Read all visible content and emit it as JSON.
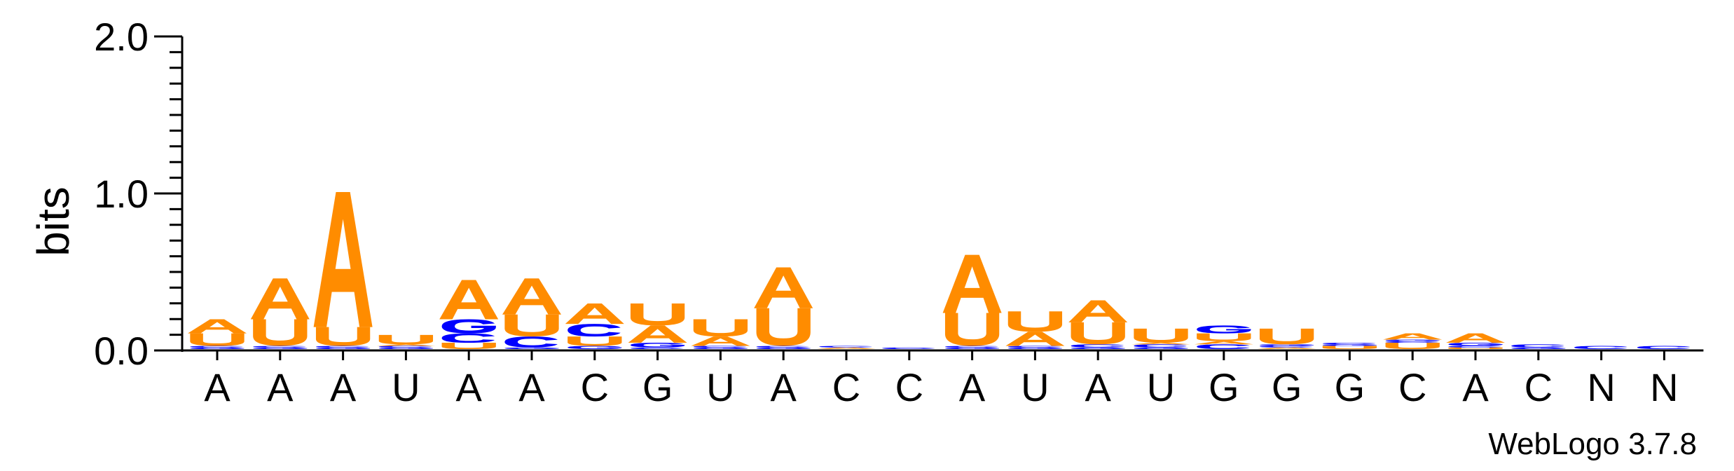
{
  "chart_data": {
    "type": "sequence-logo",
    "ylabel": "bits",
    "ylim": [
      0,
      2.0
    ],
    "yticks": [
      "0.0",
      "1.0",
      "2.0"
    ],
    "credit": "WebLogo 3.7.8",
    "colors": {
      "A": "#ff8c00",
      "U": "#ff8c00",
      "G": "#0000ff",
      "C": "#0000ff"
    },
    "positions": [
      {
        "label": "A",
        "stack": [
          {
            "letter": "G",
            "bits": 0.01
          },
          {
            "letter": "C",
            "bits": 0.01
          },
          {
            "letter": "U",
            "bits": 0.08
          },
          {
            "letter": "A",
            "bits": 0.09
          }
        ]
      },
      {
        "label": "A",
        "stack": [
          {
            "letter": "G",
            "bits": 0.01
          },
          {
            "letter": "C",
            "bits": 0.01
          },
          {
            "letter": "U",
            "bits": 0.17
          },
          {
            "letter": "A",
            "bits": 0.26
          }
        ]
      },
      {
        "label": "A",
        "stack": [
          {
            "letter": "G",
            "bits": 0.01
          },
          {
            "letter": "C",
            "bits": 0.01
          },
          {
            "letter": "U",
            "bits": 0.12
          },
          {
            "letter": "A",
            "bits": 0.86
          }
        ]
      },
      {
        "label": "U",
        "stack": [
          {
            "letter": "G",
            "bits": 0.01
          },
          {
            "letter": "C",
            "bits": 0.01
          },
          {
            "letter": "A",
            "bits": 0.01
          },
          {
            "letter": "U",
            "bits": 0.06
          }
        ]
      },
      {
        "label": "A",
        "stack": [
          {
            "letter": "U",
            "bits": 0.04
          },
          {
            "letter": "C",
            "bits": 0.06
          },
          {
            "letter": "G",
            "bits": 0.09
          },
          {
            "letter": "A",
            "bits": 0.25
          }
        ]
      },
      {
        "label": "A",
        "stack": [
          {
            "letter": "G",
            "bits": 0.01
          },
          {
            "letter": "C",
            "bits": 0.07
          },
          {
            "letter": "U",
            "bits": 0.14
          },
          {
            "letter": "A",
            "bits": 0.23
          }
        ]
      },
      {
        "label": "C",
        "stack": [
          {
            "letter": "G",
            "bits": 0.02
          },
          {
            "letter": "U",
            "bits": 0.06
          },
          {
            "letter": "C",
            "bits": 0.08
          },
          {
            "letter": "A",
            "bits": 0.13
          }
        ]
      },
      {
        "label": "G",
        "stack": [
          {
            "letter": "C",
            "bits": 0.01
          },
          {
            "letter": "G",
            "bits": 0.03
          },
          {
            "letter": "A",
            "bits": 0.11
          },
          {
            "letter": "U",
            "bits": 0.14
          }
        ]
      },
      {
        "label": "U",
        "stack": [
          {
            "letter": "G",
            "bits": 0.01
          },
          {
            "letter": "C",
            "bits": 0.01
          },
          {
            "letter": "A",
            "bits": 0.06
          },
          {
            "letter": "U",
            "bits": 0.11
          }
        ]
      },
      {
        "label": "A",
        "stack": [
          {
            "letter": "G",
            "bits": 0.01
          },
          {
            "letter": "C",
            "bits": 0.01
          },
          {
            "letter": "U",
            "bits": 0.24
          },
          {
            "letter": "A",
            "bits": 0.26
          }
        ]
      },
      {
        "label": "C",
        "stack": [
          {
            "letter": "A",
            "bits": 0.01
          },
          {
            "letter": "C",
            "bits": 0.01
          }
        ]
      },
      {
        "label": "C",
        "stack": [
          {
            "letter": "C",
            "bits": 0.01
          }
        ]
      },
      {
        "label": "A",
        "stack": [
          {
            "letter": "G",
            "bits": 0.01
          },
          {
            "letter": "C",
            "bits": 0.01
          },
          {
            "letter": "U",
            "bits": 0.21
          },
          {
            "letter": "A",
            "bits": 0.37
          }
        ]
      },
      {
        "label": "U",
        "stack": [
          {
            "letter": "G",
            "bits": 0.01
          },
          {
            "letter": "C",
            "bits": 0.01
          },
          {
            "letter": "A",
            "bits": 0.09
          },
          {
            "letter": "U",
            "bits": 0.13
          }
        ]
      },
      {
        "label": "A",
        "stack": [
          {
            "letter": "G",
            "bits": 0.01
          },
          {
            "letter": "C",
            "bits": 0.02
          },
          {
            "letter": "U",
            "bits": 0.14
          },
          {
            "letter": "A",
            "bits": 0.14
          }
        ]
      },
      {
        "label": "U",
        "stack": [
          {
            "letter": "G",
            "bits": 0.01
          },
          {
            "letter": "C",
            "bits": 0.02
          },
          {
            "letter": "A",
            "bits": 0.01
          },
          {
            "letter": "U",
            "bits": 0.09
          }
        ]
      },
      {
        "label": "G",
        "stack": [
          {
            "letter": "C",
            "bits": 0.03
          },
          {
            "letter": "A",
            "bits": 0.02
          },
          {
            "letter": "U",
            "bits": 0.05
          },
          {
            "letter": "G",
            "bits": 0.05
          }
        ]
      },
      {
        "label": "G",
        "stack": [
          {
            "letter": "A",
            "bits": 0.01
          },
          {
            "letter": "C",
            "bits": 0.01
          },
          {
            "letter": "G",
            "bits": 0.01
          },
          {
            "letter": "U",
            "bits": 0.1
          }
        ]
      },
      {
        "label": "G",
        "stack": [
          {
            "letter": "U",
            "bits": 0.02
          },
          {
            "letter": "G",
            "bits": 0.01
          },
          {
            "letter": "C",
            "bits": 0.01
          }
        ]
      },
      {
        "label": "C",
        "stack": [
          {
            "letter": "U",
            "bits": 0.04
          },
          {
            "letter": "C",
            "bits": 0.01
          },
          {
            "letter": "G",
            "bits": 0.01
          },
          {
            "letter": "A",
            "bits": 0.04
          }
        ]
      },
      {
        "label": "A",
        "stack": [
          {
            "letter": "U",
            "bits": 0.01
          },
          {
            "letter": "C",
            "bits": 0.01
          },
          {
            "letter": "G",
            "bits": 0.02
          },
          {
            "letter": "A",
            "bits": 0.06
          }
        ]
      },
      {
        "label": "C",
        "stack": [
          {
            "letter": "G",
            "bits": 0.01
          },
          {
            "letter": "C",
            "bits": 0.02
          }
        ]
      },
      {
        "label": "N",
        "stack": [
          {
            "letter": "C",
            "bits": 0.02
          }
        ]
      },
      {
        "label": "N",
        "stack": [
          {
            "letter": "C",
            "bits": 0.02
          }
        ]
      }
    ]
  }
}
